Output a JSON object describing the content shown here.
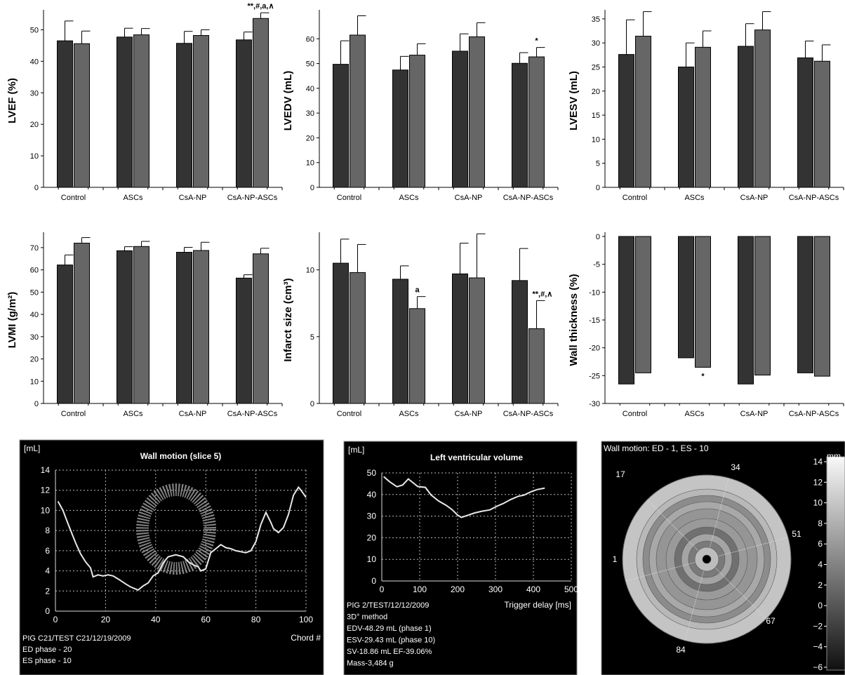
{
  "colors": {
    "dark_bar": "#333333",
    "light_bar": "#666666",
    "panel_bg": "#000000",
    "panel_fg": "#ffffff"
  },
  "chart_data": [
    {
      "type": "bar",
      "ylabel": "LVEF (%)",
      "categories": [
        "Control",
        "ASCs",
        "CsA-NP",
        "CsA-NP-ASCs"
      ],
      "series": [
        {
          "values": [
            46.5,
            47.7,
            45.7,
            46.8
          ],
          "errors": [
            6.3,
            2.8,
            3.8,
            2.5
          ]
        },
        {
          "values": [
            45.6,
            48.4,
            48.2,
            53.6
          ],
          "errors": [
            4.0,
            2.0,
            1.8,
            1.8
          ]
        }
      ],
      "ylim": [
        0,
        55
      ],
      "yticks": [
        0,
        10,
        20,
        30,
        40,
        50
      ],
      "annotations": [
        {
          "category": 3,
          "series": 1,
          "text": "**,#,a,∧"
        }
      ]
    },
    {
      "type": "bar",
      "ylabel": "LVEDV (mL)",
      "categories": [
        "Control",
        "ASCs",
        "CsA-NP",
        "CsA-NP-ASCs"
      ],
      "series": [
        {
          "values": [
            49.7,
            47.4,
            55.0,
            50.1
          ],
          "errors": [
            9.5,
            5.5,
            7.0,
            4.3
          ]
        },
        {
          "values": [
            61.5,
            53.4,
            60.8,
            52.7
          ],
          "errors": [
            7.8,
            4.6,
            5.7,
            3.8
          ]
        }
      ],
      "ylim": [
        0,
        70
      ],
      "yticks": [
        0,
        10,
        20,
        30,
        40,
        50,
        60
      ],
      "annotations": [
        {
          "category": 3,
          "series": 1,
          "text": "*"
        }
      ]
    },
    {
      "type": "bar",
      "ylabel": "LVESV (mL)",
      "categories": [
        "Control",
        "ASCs",
        "CsA-NP",
        "CsA-NP-ASCs"
      ],
      "series": [
        {
          "values": [
            27.6,
            25.0,
            29.3,
            26.9
          ],
          "errors": [
            7.2,
            5.0,
            4.7,
            3.5
          ]
        },
        {
          "values": [
            31.4,
            29.1,
            32.7,
            26.2
          ],
          "errors": [
            5.1,
            3.4,
            3.8,
            3.4
          ]
        }
      ],
      "ylim": [
        0,
        36
      ],
      "yticks": [
        0,
        5,
        10,
        15,
        20,
        25,
        30,
        35
      ],
      "annotations": []
    },
    {
      "type": "bar",
      "ylabel": "LVMI (g/m²)",
      "categories": [
        "Control",
        "ASCs",
        "CsA-NP",
        "CsA-NP-ASCs"
      ],
      "series": [
        {
          "values": [
            62.2,
            68.6,
            67.9,
            56.3
          ],
          "errors": [
            4.5,
            1.8,
            2.2,
            1.5
          ]
        },
        {
          "values": [
            72.0,
            70.5,
            68.7,
            67.2
          ],
          "errors": [
            2.5,
            2.3,
            3.7,
            2.5
          ]
        }
      ],
      "ylim": [
        0,
        75
      ],
      "yticks": [
        0,
        10,
        20,
        30,
        40,
        50,
        60,
        70
      ],
      "annotations": []
    },
    {
      "type": "bar",
      "ylabel": "Infarct size (cm³)",
      "categories": [
        "Control",
        "ASCs",
        "CsA-NP",
        "CsA-NP-ASCs"
      ],
      "series": [
        {
          "values": [
            10.5,
            9.3,
            9.7,
            9.2
          ],
          "errors": [
            1.8,
            1.0,
            2.3,
            2.4
          ]
        },
        {
          "values": [
            9.8,
            7.1,
            9.4,
            5.6
          ],
          "errors": [
            2.1,
            0.9,
            3.3,
            2.1
          ]
        }
      ],
      "ylim": [
        0,
        12.5
      ],
      "yticks": [
        0,
        5,
        10
      ],
      "annotations": [
        {
          "category": 1,
          "series": 1,
          "text": "a"
        },
        {
          "category": 3,
          "series": 1,
          "text": "**,#,∧"
        }
      ]
    },
    {
      "type": "bar",
      "ylabel": "Wall thickness (%)",
      "categories": [
        "Control",
        "ASCs",
        "CsA-NP",
        "CsA-NP-ASCs"
      ],
      "series": [
        {
          "values": [
            -26.5,
            -21.8,
            -26.5,
            -24.5
          ],
          "errors": [
            0,
            0,
            0,
            0
          ]
        },
        {
          "values": [
            -24.5,
            -23.5,
            -24.9,
            -25.1
          ],
          "errors": [
            0,
            0,
            0,
            0
          ]
        }
      ],
      "ylim": [
        -30,
        0
      ],
      "yticks": [
        0,
        -5,
        -10,
        -15,
        -20,
        -25,
        -30
      ],
      "annotations": [
        {
          "category": 1,
          "series": 1,
          "text": "*"
        }
      ]
    },
    {
      "type": "line",
      "title": "Wall motion (slice 5)",
      "ylabel": "[mL]",
      "xlabel": "Chord #",
      "xlim": [
        0,
        100
      ],
      "ylim": [
        0,
        14
      ],
      "xticks": [
        0,
        20,
        40,
        60,
        80,
        100
      ],
      "yticks": [
        0,
        2,
        4,
        6,
        8,
        10,
        12,
        14
      ],
      "grid": true,
      "x": [
        1,
        3,
        5,
        8,
        10,
        12,
        14,
        15,
        17,
        19,
        21,
        23,
        25,
        28,
        30,
        32,
        33,
        35,
        37,
        39,
        41,
        43,
        45,
        48,
        51,
        53,
        55,
        57,
        58,
        60,
        62,
        64,
        66,
        68,
        70,
        72,
        74,
        76,
        78,
        80,
        82,
        84,
        86,
        87,
        89,
        91,
        93,
        95,
        97,
        98,
        100
      ],
      "y": [
        10.9,
        10.0,
        8.7,
        6.8,
        5.7,
        4.9,
        4.3,
        3.4,
        3.6,
        3.5,
        3.6,
        3.5,
        3.2,
        2.7,
        2.4,
        2.2,
        2.1,
        2.5,
        2.8,
        3.5,
        3.8,
        4.8,
        5.4,
        5.6,
        5.4,
        4.9,
        4.6,
        4.4,
        4.0,
        4.2,
        5.8,
        6.2,
        6.6,
        6.3,
        6.2,
        6.0,
        5.9,
        5.8,
        6.0,
        6.9,
        8.6,
        9.8,
        8.8,
        8.2,
        7.8,
        8.3,
        9.6,
        11.5,
        12.3,
        12.0,
        11.3
      ],
      "footer_lines": [
        "PIG C21/TEST C21/12/19/2009",
        "ED phase - 20",
        "ES phase - 10"
      ]
    },
    {
      "type": "line",
      "title": "Left ventricular volume",
      "ylabel": "[mL]",
      "xlabel": "Trigger delay [ms]",
      "xlim": [
        0,
        500
      ],
      "ylim": [
        0,
        50
      ],
      "xticks": [
        0,
        100,
        200,
        300,
        400,
        500
      ],
      "yticks": [
        0,
        10,
        20,
        30,
        40,
        50
      ],
      "grid": true,
      "x": [
        5,
        20,
        40,
        55,
        70,
        95,
        115,
        130,
        150,
        170,
        185,
        200,
        210,
        225,
        245,
        265,
        285,
        305,
        320,
        340,
        360,
        375,
        395,
        410,
        430
      ],
      "y": [
        48.3,
        46.0,
        43.6,
        44.4,
        47.2,
        43.7,
        43.3,
        39.8,
        37.0,
        35.0,
        33.1,
        30.5,
        29.4,
        30.3,
        31.5,
        32.3,
        32.9,
        34.7,
        35.8,
        37.7,
        39.2,
        39.7,
        41.4,
        42.3,
        43.0
      ],
      "footer_lines": [
        "PIG 2/TEST/12/12/2009",
        "3D° method",
        "EDV-48.29 mL (phase 1)",
        "ESV-29.43 mL (phase 10)",
        "SV-18.86 mL EF-39.06%",
        "Mass-3,484 g"
      ]
    },
    {
      "type": "heatmap",
      "title": "Wall motion: ED - 1, ES - 10",
      "segment_labels": [
        "34",
        "17",
        "51",
        "1",
        "67",
        "84"
      ],
      "colorbar_unit": "mm",
      "colorbar_ticks": [
        14,
        12,
        10,
        8,
        6,
        4,
        2,
        0,
        -2,
        -4,
        -6
      ]
    }
  ]
}
